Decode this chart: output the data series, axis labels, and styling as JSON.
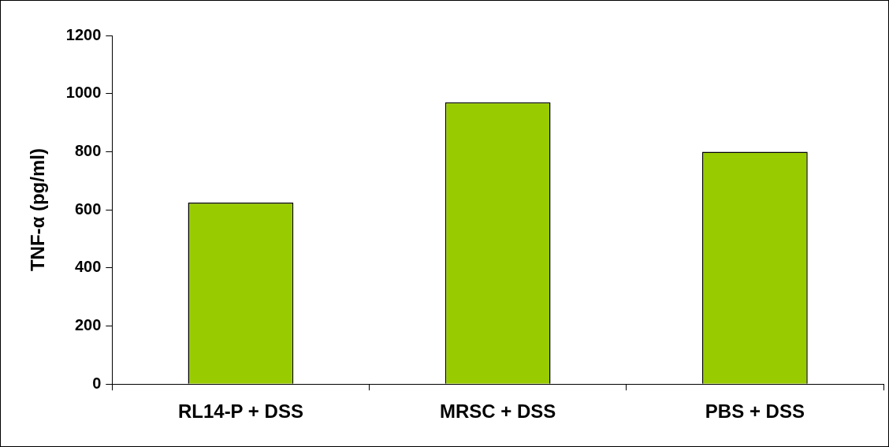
{
  "chart_data": {
    "type": "bar",
    "ylabel": "TNF-α (pg/ml)",
    "categories": [
      "RL14-P + DSS",
      "MRSC + DSS",
      "PBS + DSS"
    ],
    "values": [
      625,
      970,
      800
    ],
    "color": "#99cc00",
    "ylim": [
      0,
      1200
    ],
    "yticks": [
      0,
      200,
      400,
      600,
      800,
      1000,
      1200
    ],
    "grid": false,
    "legend": false
  }
}
